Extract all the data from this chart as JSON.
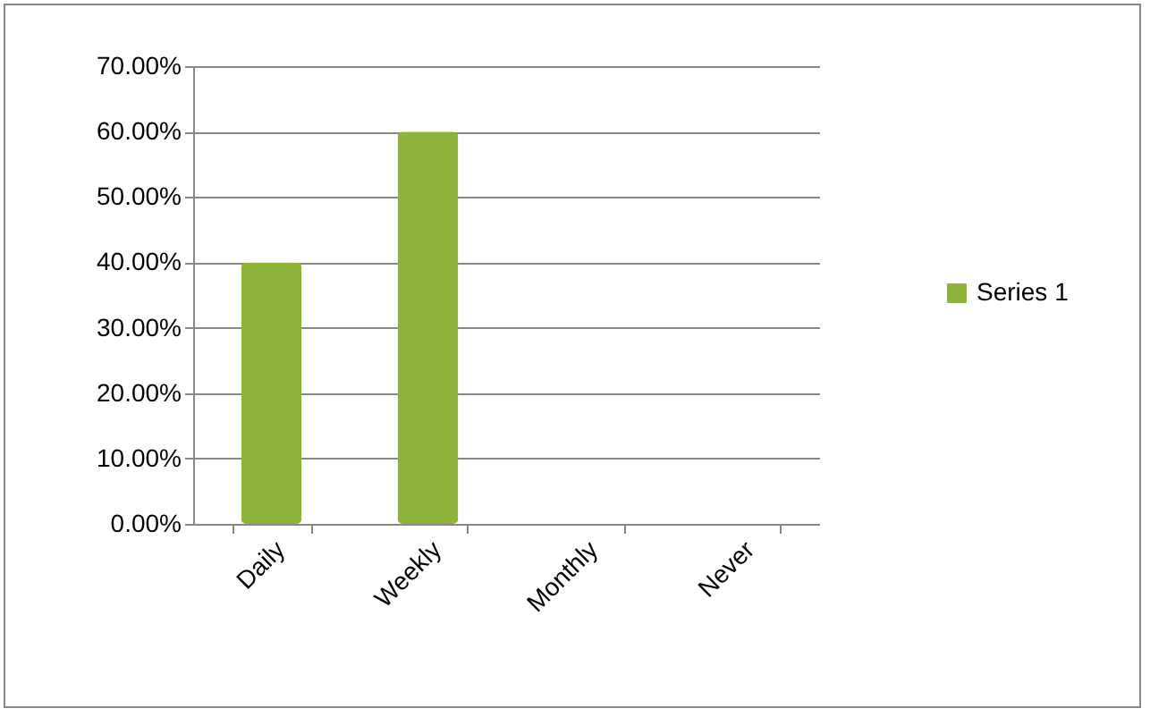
{
  "chart_data": {
    "type": "bar",
    "categories": [
      "Daily",
      "Weekly",
      "Monthly",
      "Never"
    ],
    "series": [
      {
        "name": "Series 1",
        "color": "#8db33a",
        "values": [
          40,
          60,
          0,
          0
        ]
      }
    ],
    "ylim": [
      0,
      70
    ],
    "yticks": [
      {
        "value": 0,
        "label": "0.00%"
      },
      {
        "value": 10,
        "label": "10.00%"
      },
      {
        "value": 20,
        "label": "20.00%"
      },
      {
        "value": 30,
        "label": "30.00%"
      },
      {
        "value": 40,
        "label": "40.00%"
      },
      {
        "value": 50,
        "label": "50.00%"
      },
      {
        "value": 60,
        "label": "60.00%"
      },
      {
        "value": 70,
        "label": "70.00%"
      }
    ],
    "grid": "y",
    "legend": "right"
  }
}
